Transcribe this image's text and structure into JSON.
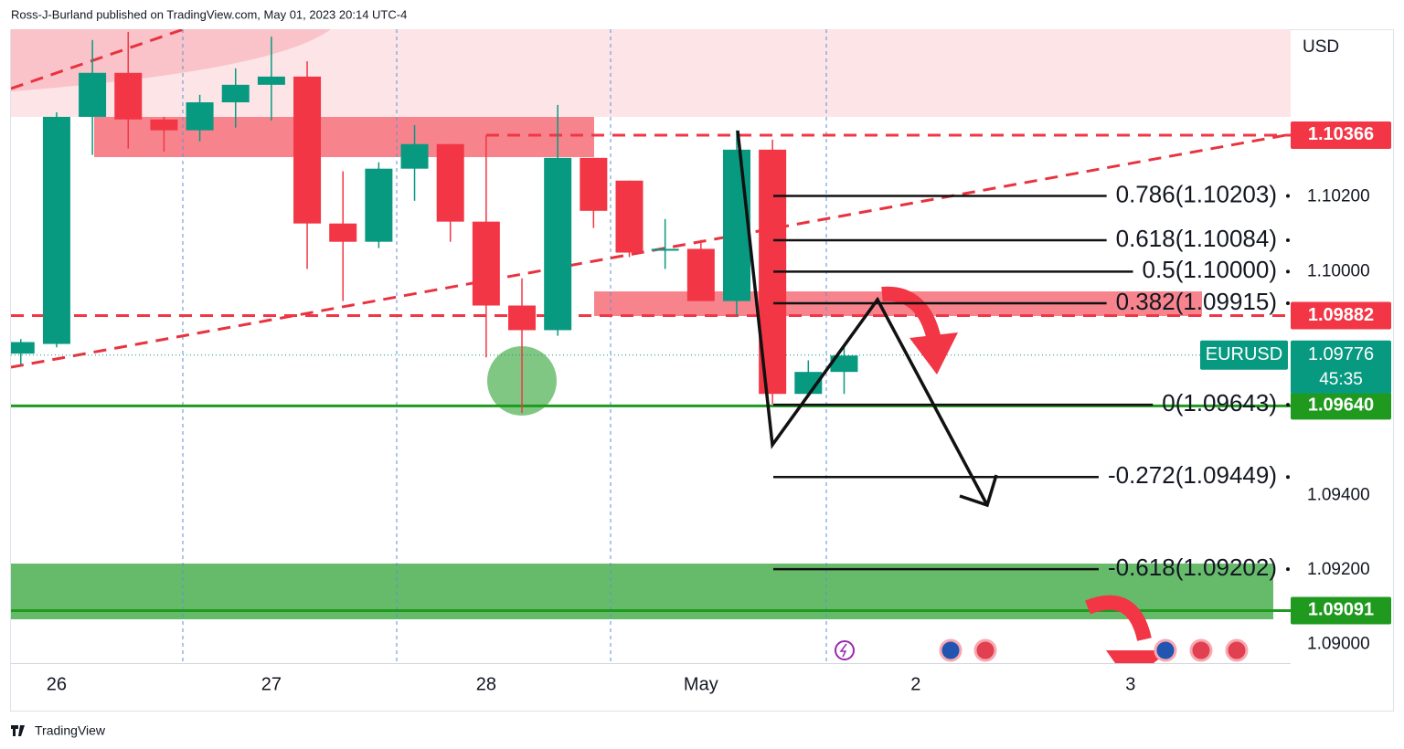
{
  "header": "Ross-J-Burland published on TradingView.com, May 01, 2023 20:14 UTC-4",
  "footer": "TradingView",
  "chart_data": {
    "type": "candlestick",
    "symbol": "EURUSD",
    "currency": "USD",
    "x": [
      -4,
      0,
      4,
      8,
      12,
      16,
      20,
      24,
      28,
      32,
      36,
      40,
      44,
      48,
      52,
      56,
      60,
      64,
      68,
      72,
      76,
      80,
      84,
      88
    ],
    "open": [
      1.0978,
      1.09806,
      1.10415,
      1.10533,
      1.10408,
      1.10379,
      1.10454,
      1.10501,
      1.10523,
      1.10129,
      1.1008,
      1.10276,
      1.10342,
      1.10134,
      1.09909,
      1.09843,
      1.10305,
      1.10244,
      1.10056,
      1.10061,
      1.09921,
      1.10327,
      1.09672,
      1.09731
    ],
    "high": [
      1.09819,
      1.10427,
      1.10621,
      1.10643,
      1.10415,
      1.10474,
      1.10545,
      1.1063,
      1.10564,
      1.10269,
      1.10293,
      1.10393,
      1.10342,
      1.10366,
      1.09982,
      1.10447,
      1.10305,
      1.10244,
      1.10141,
      1.10085,
      1.10379,
      1.10354,
      1.09762,
      1.09799
    ],
    "low": [
      1.0975,
      1.09797,
      1.10313,
      1.1033,
      1.10322,
      1.10349,
      1.10386,
      1.10405,
      1.10007,
      1.09921,
      1.10063,
      1.1019,
      1.1008,
      1.0977,
      1.09621,
      1.09828,
      1.10117,
      1.10039,
      1.10007,
      1.09921,
      1.09882,
      1.09645,
      1.09672,
      1.09672
    ],
    "close": [
      1.09811,
      1.10415,
      1.10533,
      1.10408,
      1.10379,
      1.10454,
      1.10501,
      1.10523,
      1.10129,
      1.1008,
      1.10276,
      1.10342,
      1.10134,
      1.09909,
      1.09843,
      1.10305,
      1.10163,
      1.10051,
      1.10061,
      1.09921,
      1.10327,
      1.09672,
      1.09731,
      1.09775
    ],
    "up_color": "#089981",
    "down_color": "#f23645",
    "xlim": [
      -5.1,
      137.9
    ],
    "xticks": [
      {
        "value": 0,
        "label": "26"
      },
      {
        "value": 24,
        "label": "27"
      },
      {
        "value": 48,
        "label": "28"
      },
      {
        "value": 72,
        "label": "May"
      },
      {
        "value": 96,
        "label": "2"
      },
      {
        "value": 120,
        "label": "3"
      }
    ],
    "ylim": [
      1.0895,
      1.1065
    ],
    "yticks": [
      {
        "value": 1.102,
        "label": "1.10200"
      },
      {
        "value": 1.1,
        "label": "1.10000"
      },
      {
        "value": 1.094,
        "label": "1.09400"
      },
      {
        "value": 1.092,
        "label": "1.09200"
      },
      {
        "value": 1.09,
        "label": "1.09000"
      }
    ],
    "price_tags": [
      {
        "value": 1.10366,
        "label": "1.10366",
        "color": "#f23645",
        "style": "dashed"
      },
      {
        "value": 1.09882,
        "label": "1.09882",
        "color": "#f23645",
        "style": "dashed"
      },
      {
        "value": 1.0964,
        "label": "1.09640",
        "color": "#1f9a1f",
        "style": "solid"
      },
      {
        "value": 1.09091,
        "label": "1.09091",
        "color": "#1f9a1f",
        "style": "solid"
      }
    ],
    "last_price": {
      "value": 1.09776,
      "label": "1.09776",
      "countdown": "45:35",
      "color": "#089981"
    },
    "fib_levels": [
      {
        "label": "0.786(1.10203)",
        "value": 1.10203
      },
      {
        "label": "0.618(1.10084)",
        "value": 1.10084
      },
      {
        "label": "0.5(1.10000)",
        "value": 1.1
      },
      {
        "label": "0.382(1.09915)",
        "value": 1.09915
      },
      {
        "label": "0(1.09643)",
        "value": 1.09643
      },
      {
        "label": "-0.272(1.09449)",
        "value": 1.09449
      },
      {
        "label": "-0.618(1.09202)",
        "value": 1.09202
      }
    ]
  }
}
